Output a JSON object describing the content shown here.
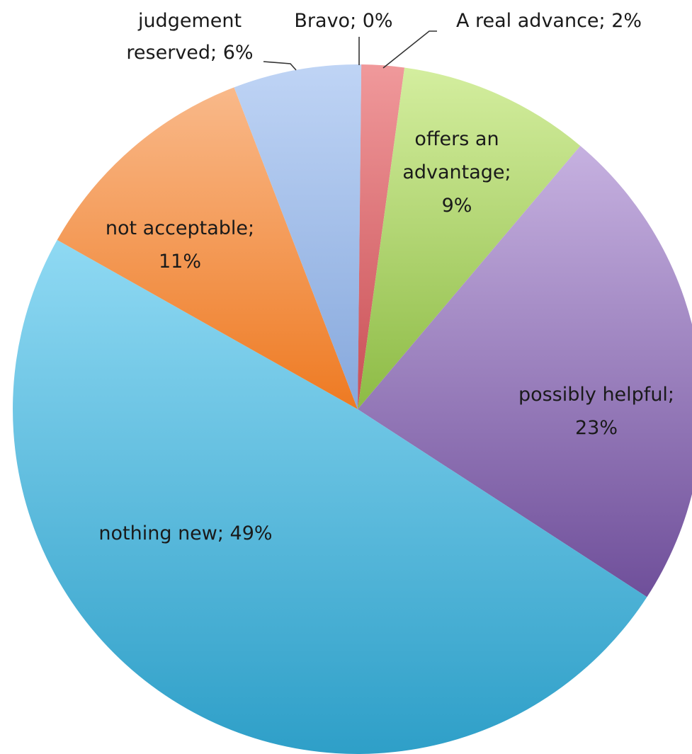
{
  "chart_data": {
    "type": "pie",
    "title": "",
    "slices": [
      {
        "label": "Bravo; 0%",
        "value": 0,
        "color": "#8aa9d6"
      },
      {
        "label": "A real advance; 2%",
        "value": 2,
        "color": "#dc6e72"
      },
      {
        "label": "offers an advantage; 9%",
        "value": 9,
        "color": "#a9cf6b"
      },
      {
        "label": "possibly helpful; 23%",
        "value": 23,
        "color": "#9a7cbd"
      },
      {
        "label": "nothing new; 49%",
        "value": 49,
        "color": "#5bbde3"
      },
      {
        "label": "not acceptable; 11%",
        "value": 11,
        "color": "#f3934a"
      },
      {
        "label": "judgement reserved; 6%",
        "value": 6,
        "color": "#a3c0ec"
      }
    ],
    "start_angle": "12 o'clock",
    "direction": "clockwise",
    "legend": "none"
  }
}
